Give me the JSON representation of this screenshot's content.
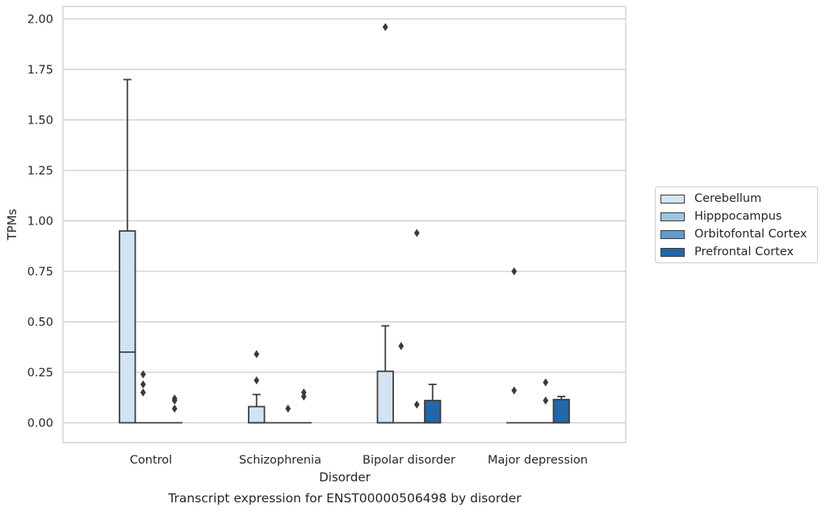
{
  "chart_data": {
    "type": "box",
    "title": "Transcript expression for ENST00000506498 by disorder",
    "xlabel": "Disorder",
    "ylabel": "TPMs",
    "ylim": [
      -0.1,
      2.06
    ],
    "yticks": [
      "0.00",
      "0.25",
      "0.50",
      "0.75",
      "1.00",
      "1.25",
      "1.50",
      "1.75",
      "2.00"
    ],
    "ytick_values": [
      0,
      0.25,
      0.5,
      0.75,
      1.0,
      1.25,
      1.5,
      1.75,
      2.0
    ],
    "categories": [
      "Control",
      "Schizophrenia",
      "Bipolar disorder",
      "Major depression"
    ],
    "grid": "horizontal",
    "legend_position": "right",
    "series": [
      {
        "name": "Cerebellum",
        "color": "#d4e3f2",
        "boxes": [
          {
            "q1": 0,
            "median": 0.35,
            "q3": 0.95,
            "whisker_low": 0,
            "whisker_high": 1.7,
            "outliers": []
          },
          {
            "q1": 0,
            "median": 0,
            "q3": 0.08,
            "whisker_low": 0,
            "whisker_high": 0.14,
            "outliers": [
              0.21,
              0.34
            ]
          },
          {
            "q1": 0,
            "median": 0,
            "q3": 0.255,
            "whisker_low": 0,
            "whisker_high": 0.48,
            "outliers": [
              1.96
            ]
          },
          {
            "q1": 0,
            "median": 0,
            "q3": 0,
            "whisker_low": 0,
            "whisker_high": 0,
            "outliers": [
              0.16,
              0.75
            ]
          }
        ]
      },
      {
        "name": "Hipppocampus",
        "color": "#9ec5df",
        "boxes": [
          {
            "q1": 0,
            "median": 0,
            "q3": 0,
            "whisker_low": 0,
            "whisker_high": 0,
            "outliers": [
              0.15,
              0.19,
              0.24
            ]
          },
          {
            "q1": 0,
            "median": 0,
            "q3": 0,
            "whisker_low": 0,
            "whisker_high": 0,
            "outliers": []
          },
          {
            "q1": 0,
            "median": 0,
            "q3": 0,
            "whisker_low": 0,
            "whisker_high": 0,
            "outliers": [
              0.38
            ]
          },
          {
            "q1": 0,
            "median": 0,
            "q3": 0,
            "whisker_low": 0,
            "whisker_high": 0,
            "outliers": []
          }
        ]
      },
      {
        "name": "Orbitofontal Cortex",
        "color": "#5c9fcb",
        "boxes": [
          {
            "q1": 0,
            "median": 0,
            "q3": 0,
            "whisker_low": 0,
            "whisker_high": 0,
            "outliers": []
          },
          {
            "q1": 0,
            "median": 0,
            "q3": 0,
            "whisker_low": 0,
            "whisker_high": 0,
            "outliers": [
              0.07
            ]
          },
          {
            "q1": 0,
            "median": 0,
            "q3": 0,
            "whisker_low": 0,
            "whisker_high": 0,
            "outliers": [
              0.09,
              0.94
            ]
          },
          {
            "q1": 0,
            "median": 0,
            "q3": 0,
            "whisker_low": 0,
            "whisker_high": 0,
            "outliers": [
              0.11,
              0.2
            ]
          }
        ]
      },
      {
        "name": "Prefrontal Cortex",
        "color": "#2267a9",
        "boxes": [
          {
            "q1": 0,
            "median": 0,
            "q3": 0,
            "whisker_low": 0,
            "whisker_high": 0,
            "outliers": [
              0.07,
              0.11,
              0.12
            ]
          },
          {
            "q1": 0,
            "median": 0,
            "q3": 0,
            "whisker_low": 0,
            "whisker_high": 0,
            "outliers": [
              0.13,
              0.15
            ]
          },
          {
            "q1": 0,
            "median": 0,
            "q3": 0.11,
            "whisker_low": 0,
            "whisker_high": 0.19,
            "outliers": []
          },
          {
            "q1": 0,
            "median": 0,
            "q3": 0.115,
            "whisker_low": 0,
            "whisker_high": 0.13,
            "outliers": []
          }
        ]
      }
    ]
  }
}
